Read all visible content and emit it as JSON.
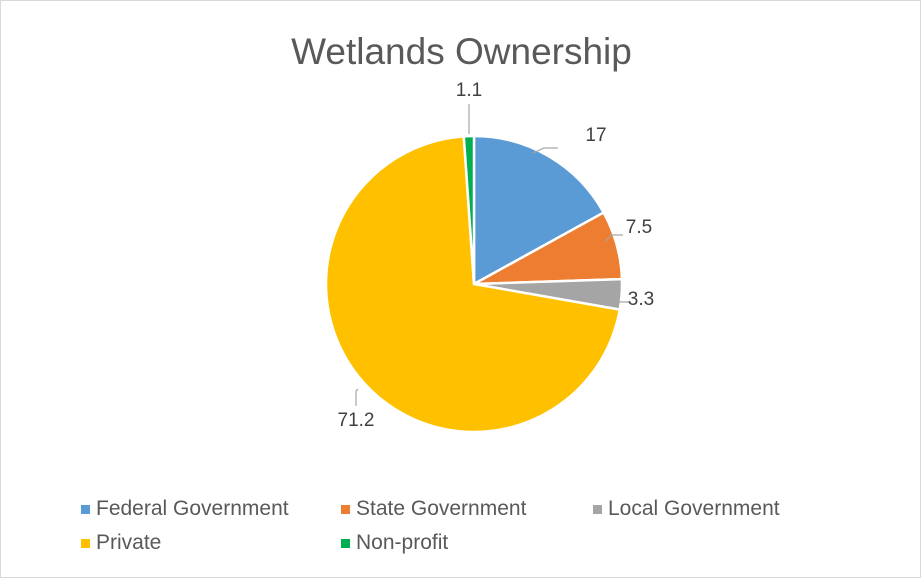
{
  "chart_data": {
    "type": "pie",
    "title": "Wetlands Ownership",
    "categories": [
      "Federal Government",
      "State Government",
      "Local Government",
      "Private",
      "Non-profit"
    ],
    "values": [
      17,
      7.5,
      3.3,
      71.2,
      1.1
    ],
    "data_labels": [
      "17",
      "7.5",
      "3.3",
      "71.2",
      "1.1"
    ],
    "colors": [
      "#5b9bd5",
      "#ed7d31",
      "#a5a5a5",
      "#ffc000",
      "#00b050"
    ],
    "start_angle_deg": 0,
    "direction": "clockwise",
    "legend_position": "bottom"
  }
}
